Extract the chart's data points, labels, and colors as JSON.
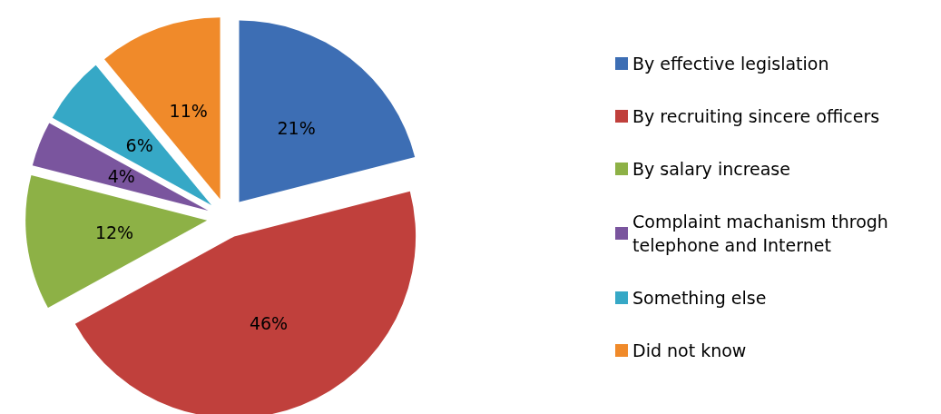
{
  "chart_data": {
    "type": "pie",
    "categories": [
      "By effective legislation",
      "By recruiting sincere officers",
      "By salary increase",
      "Complaint machanism throgh telephone and Internet",
      "Something else",
      "Did not know"
    ],
    "values": [
      21,
      46,
      12,
      4,
      6,
      11
    ],
    "colors": [
      "#3d6eb4",
      "#c0403c",
      "#8db146",
      "#7a559e",
      "#36a8c6",
      "#f08a2a"
    ],
    "value_labels": [
      "21%",
      "46%",
      "12%",
      "4%",
      "6%",
      "11%"
    ],
    "legend": "right"
  }
}
